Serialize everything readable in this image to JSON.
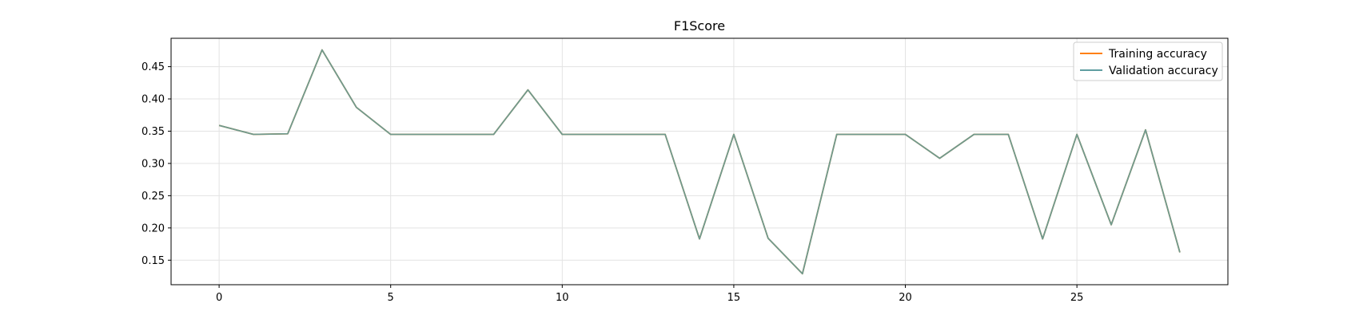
{
  "chart_data": {
    "type": "line",
    "title": "F1Score",
    "xlabel": "",
    "ylabel": "",
    "xlim": [
      -1.4,
      29.4
    ],
    "ylim": [
      0.112,
      0.494
    ],
    "xticks": [
      0,
      5,
      10,
      15,
      20,
      25
    ],
    "yticks": [
      0.15,
      0.2,
      0.25,
      0.3,
      0.35,
      0.4,
      0.45
    ],
    "grid": true,
    "legend_position": "top-right",
    "x": [
      0,
      1,
      2,
      3,
      4,
      5,
      6,
      7,
      8,
      9,
      10,
      11,
      12,
      13,
      14,
      15,
      16,
      17,
      18,
      19,
      20,
      21,
      22,
      23,
      24,
      25,
      26,
      27,
      28
    ],
    "series": [
      {
        "name": "Training accuracy",
        "color": "#ff7f0e",
        "values": [
          0.359,
          0.345,
          0.346,
          0.476,
          0.387,
          0.345,
          0.345,
          0.345,
          0.345,
          0.414,
          0.345,
          0.345,
          0.345,
          0.345,
          0.183,
          0.345,
          0.184,
          0.129,
          0.345,
          0.345,
          0.345,
          0.308,
          0.345,
          0.345,
          0.183,
          0.345,
          0.205,
          0.352,
          0.162
        ]
      },
      {
        "name": "Validation accuracy",
        "color": "#5f9ea0",
        "values": [
          0.359,
          0.345,
          0.346,
          0.476,
          0.387,
          0.345,
          0.345,
          0.345,
          0.345,
          0.414,
          0.345,
          0.345,
          0.345,
          0.345,
          0.183,
          0.345,
          0.184,
          0.129,
          0.345,
          0.345,
          0.345,
          0.308,
          0.345,
          0.345,
          0.183,
          0.345,
          0.205,
          0.352,
          0.162
        ]
      }
    ]
  }
}
